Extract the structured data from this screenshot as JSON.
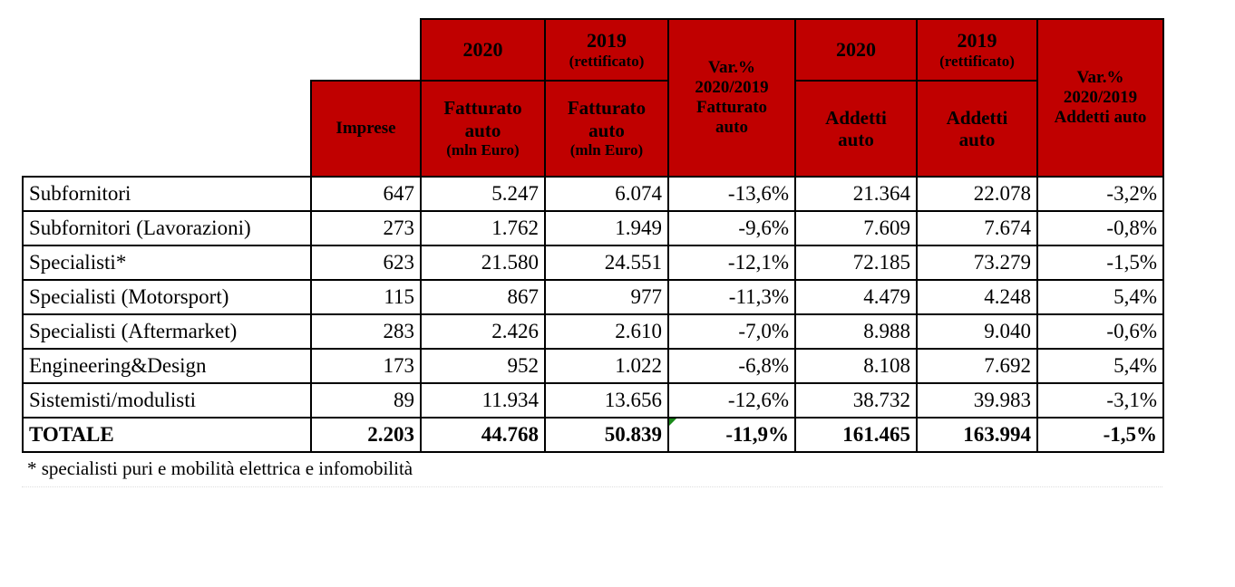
{
  "header": {
    "imprese": "Imprese",
    "y2020_a": "2020",
    "y2019_a": "2019",
    "rett_a": "(rettificato)",
    "fatt_2020_1": "Fatturato",
    "fatt_2020_2": "auto",
    "fatt_2020_3": "(mln Euro)",
    "fatt_2019_1": "Fatturato",
    "fatt_2019_2": "auto",
    "fatt_2019_3": "(mln Euro)",
    "var_a_1": "Var.%",
    "var_a_2": "2020/2019",
    "var_a_3": "Fatturato",
    "var_a_4": "auto",
    "y2020_b": "2020",
    "y2019_b": "2019",
    "rett_b": "(rettificato)",
    "add_2020_1": "Addetti",
    "add_2020_2": "auto",
    "add_2019_1": "Addetti",
    "add_2019_2": "auto",
    "var_b_1": "Var.%",
    "var_b_2": "2020/2019",
    "var_b_3": "Addetti auto"
  },
  "chart_data": {
    "type": "table",
    "columns": [
      "",
      "Imprese",
      "2020 Fatturato auto (mln Euro)",
      "2019 (rettificato) Fatturato auto (mln Euro)",
      "Var.% 2020/2019 Fatturato auto",
      "2020 Addetti auto",
      "2019 (rettificato) Addetti auto",
      "Var.% 2020/2019 Addetti auto"
    ],
    "rows": [
      {
        "label": "Subfornitori",
        "imprese": "647",
        "fatt2020": "5.247",
        "fatt2019": "6.074",
        "varfatt": "-13,6%",
        "add2020": "21.364",
        "add2019": "22.078",
        "varadd": "-3,2%"
      },
      {
        "label": "Subfornitori (Lavorazioni)",
        "imprese": "273",
        "fatt2020": "1.762",
        "fatt2019": "1.949",
        "varfatt": "-9,6%",
        "add2020": "7.609",
        "add2019": "7.674",
        "varadd": "-0,8%"
      },
      {
        "label": "Specialisti*",
        "imprese": "623",
        "fatt2020": "21.580",
        "fatt2019": "24.551",
        "varfatt": "-12,1%",
        "add2020": "72.185",
        "add2019": "73.279",
        "varadd": "-1,5%"
      },
      {
        "label": "Specialisti (Motorsport)",
        "imprese": "115",
        "fatt2020": "867",
        "fatt2019": "977",
        "varfatt": "-11,3%",
        "add2020": "4.479",
        "add2019": "4.248",
        "varadd": "5,4%"
      },
      {
        "label": "Specialisti (Aftermarket)",
        "imprese": "283",
        "fatt2020": "2.426",
        "fatt2019": "2.610",
        "varfatt": "-7,0%",
        "add2020": "8.988",
        "add2019": "9.040",
        "varadd": "-0,6%"
      },
      {
        "label": "Engineering&Design",
        "imprese": "173",
        "fatt2020": "952",
        "fatt2019": "1.022",
        "varfatt": "-6,8%",
        "add2020": "8.108",
        "add2019": "7.692",
        "varadd": "5,4%"
      },
      {
        "label": "Sistemisti/modulisti",
        "imprese": "89",
        "fatt2020": "11.934",
        "fatt2019": "13.656",
        "varfatt": "-12,6%",
        "add2020": "38.732",
        "add2019": "39.983",
        "varadd": "-3,1%"
      }
    ],
    "total": {
      "label": "TOTALE",
      "imprese": "2.203",
      "fatt2020": "44.768",
      "fatt2019": "50.839",
      "varfatt": "-11,9%",
      "add2020": "161.465",
      "add2019": "163.994",
      "varadd": "-1,5%"
    }
  },
  "footnote": "* specialisti puri e mobilità elettrica e infomobilità",
  "colors": {
    "header_bg": "#c00000",
    "border": "#000000",
    "marker": "#1a8a1a"
  }
}
